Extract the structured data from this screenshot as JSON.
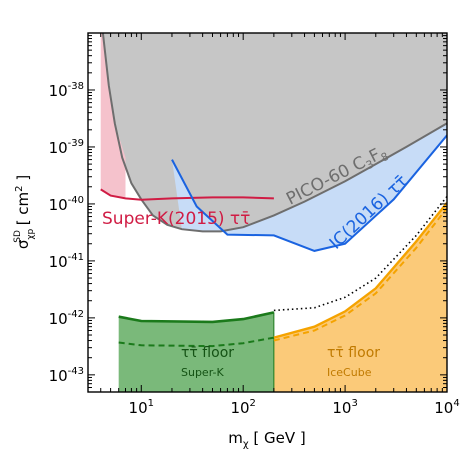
{
  "chart_data": {
    "type": "area",
    "x_scale": "log",
    "y_scale": "log",
    "xlim": [
      3,
      10000
    ],
    "ylim": [
      5e-44,
      1e-37
    ],
    "xlabel_parts": [
      "m",
      "χ",
      " [ GeV ]"
    ],
    "ylabel_parts": [
      "σ",
      "χp",
      "SD",
      " [ cm",
      "2",
      " ]"
    ],
    "x_ticks": [
      {
        "v": 10,
        "base": "10",
        "exp": "1"
      },
      {
        "v": 100,
        "base": "10",
        "exp": "2"
      },
      {
        "v": 1000,
        "base": "10",
        "exp": "3"
      },
      {
        "v": 10000,
        "base": "10",
        "exp": "4"
      }
    ],
    "y_ticks": [
      {
        "v": 1e-38,
        "base": "10",
        "exp": "-38"
      },
      {
        "v": 1e-39,
        "base": "10",
        "exp": "-39"
      },
      {
        "v": 1e-40,
        "base": "10",
        "exp": "-40"
      },
      {
        "v": 1e-41,
        "base": "10",
        "exp": "-41"
      },
      {
        "v": 1e-42,
        "base": "10",
        "exp": "-42"
      },
      {
        "v": 1e-43,
        "base": "10",
        "exp": "-43"
      }
    ],
    "series": [
      {
        "name": "PICO-60 C3F8",
        "fill": "#c6c6c6",
        "line": "#6e6e6e",
        "x": [
          4.2,
          4.8,
          5.5,
          6.5,
          8,
          10,
          13,
          18,
          25,
          40,
          60,
          100,
          200,
          400,
          1000,
          2000,
          4000,
          10000
        ],
        "y": [
          1e-37,
          1.2e-38,
          2.6e-39,
          6.5e-40,
          2.3e-40,
          1.2e-40,
          6.3e-41,
          4.3e-41,
          3.6e-41,
          3.3e-41,
          3.3e-41,
          3.9e-41,
          6.3e-41,
          1.1e-40,
          2.5e-40,
          5e-40,
          1e-39,
          2.6e-39
        ]
      },
      {
        "name": "Super-K(2015) ττ̄",
        "fill": "#f5c2cc",
        "line": "#d01c44",
        "x": [
          4,
          5,
          7,
          10,
          20,
          50,
          100,
          200
        ],
        "y": [
          1.8e-40,
          1.4e-40,
          1.25e-40,
          1.18e-40,
          1.25e-40,
          1.3e-40,
          1.3e-40,
          1.25e-40
        ]
      },
      {
        "name": "IC(2016) ττ̄",
        "fill": "#c7dcf7",
        "line": "#1a63e0",
        "x": [
          20,
          35,
          70,
          200,
          500,
          1000,
          3000,
          10000
        ],
        "y": [
          6e-40,
          9e-41,
          2.9e-41,
          2.8e-41,
          1.5e-41,
          2e-41,
          1.2e-40,
          1.6e-39
        ]
      },
      {
        "name": "ττ̄ floor Super-K",
        "fill": "#7ab97a",
        "line": "#1b7a1b",
        "x": [
          6,
          10,
          50,
          100,
          200
        ],
        "y": [
          1.05e-42,
          8.8e-43,
          8.5e-43,
          9.5e-43,
          1.25e-42
        ],
        "dashed_y": [
          3.7e-43,
          3.3e-43,
          3.2e-43,
          3.6e-43,
          4.5e-43
        ]
      },
      {
        "name": "ττ̄ floor IceCube",
        "fill": "#fbca79",
        "line": "#f5a300",
        "x": [
          200,
          500,
          1000,
          2000,
          5000,
          10000
        ],
        "y": [
          4.5e-43,
          7e-43,
          1.3e-42,
          3.3e-42,
          2.2e-41,
          1.05e-40
        ],
        "dashed_y": [
          4e-43,
          6e-43,
          1.1e-42,
          2.7e-42,
          1.7e-41,
          8.5e-41
        ]
      },
      {
        "name": "dotted neutrino floor",
        "line": "#000000",
        "x": [
          200,
          500,
          1000,
          2000,
          5000,
          10000
        ],
        "y": [
          1.35e-42,
          1.5e-42,
          2.3e-42,
          5e-42,
          2.8e-41,
          1.35e-40
        ]
      }
    ],
    "labels": {
      "pico_main": "PICO-60 C",
      "pico_sub1": "3",
      "pico_mid": "F",
      "pico_sub2": "8",
      "superk": "Super-K(2015) ττ̄",
      "ic": "IC(2016) ττ̄",
      "floor_sk_line1": "ττ̄ floor",
      "floor_sk_line2": "Super-K",
      "floor_ic_line1": "ττ̄ floor",
      "floor_ic_line2": "IceCube"
    }
  }
}
